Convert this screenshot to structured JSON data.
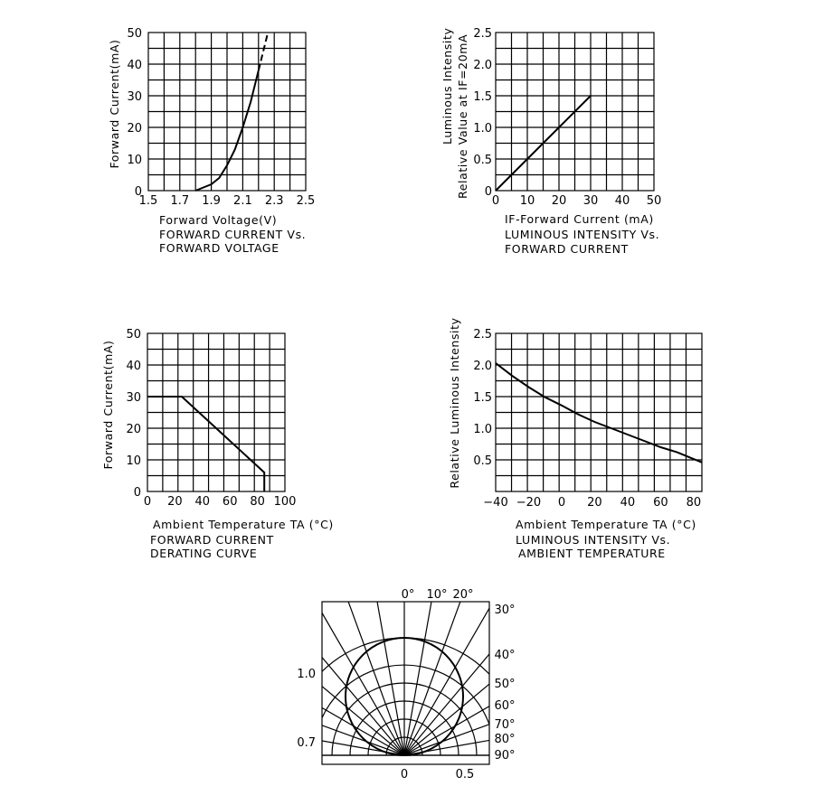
{
  "chart_data": [
    {
      "type": "line",
      "xlabel": "Forward Voltage(V)",
      "ylabel": "Forward Current(mA)",
      "caption": [
        "FORWARD CURRENT Vs.",
        "FORWARD VOLTAGE"
      ],
      "xlim": [
        1.5,
        2.5
      ],
      "ylim": [
        0,
        50
      ],
      "x_ticks": [
        1.5,
        1.7,
        1.9,
        2.1,
        2.3,
        2.5
      ],
      "x_tick_labels": [
        "1.5",
        "1.7",
        "1.9",
        "2.1",
        "2.3",
        "2.5"
      ],
      "y_ticks": [
        0,
        10,
        20,
        30,
        40,
        50
      ],
      "y_tick_labels": [
        "0",
        "10",
        "20",
        "30",
        "40",
        "50"
      ],
      "series": [
        {
          "style": "solid",
          "x": [
            1.8,
            1.85,
            1.9,
            1.95,
            2.0,
            2.05,
            2.1,
            2.15,
            2.2
          ],
          "y": [
            0,
            1,
            2,
            4,
            8,
            13,
            20,
            28,
            38
          ]
        },
        {
          "style": "dashed",
          "x": [
            2.2,
            2.23,
            2.26
          ],
          "y": [
            38,
            44,
            50
          ]
        }
      ],
      "grid": true
    },
    {
      "type": "line",
      "xlabel": "IF-Forward Current (mA)",
      "ylabel": "Relative Value at IF=20mA",
      "ylabel2": "Luminous Intensity",
      "caption": [
        "LUMINOUS INTENSITY Vs.",
        "FORWARD CURRENT"
      ],
      "xlim": [
        0,
        50
      ],
      "ylim": [
        0,
        2.5
      ],
      "x_ticks": [
        0,
        10,
        20,
        30,
        40,
        50
      ],
      "x_tick_labels": [
        "0",
        "10",
        "20",
        "30",
        "40",
        "50"
      ],
      "y_ticks": [
        0,
        0.5,
        1.0,
        1.5,
        2.0,
        2.5
      ],
      "y_tick_labels": [
        "0",
        "0.5",
        "1.0",
        "1.5",
        "2.0",
        "2.5"
      ],
      "series": [
        {
          "style": "solid",
          "x": [
            0,
            30
          ],
          "y": [
            0,
            1.5
          ]
        }
      ],
      "grid": true
    },
    {
      "type": "line",
      "xlabel": "Ambient Temperature TA (°C)",
      "ylabel": "Forward Current(mA)",
      "caption": [
        "FORWARD CURRENT",
        "DERATING CURVE"
      ],
      "xlim": [
        0,
        100
      ],
      "ylim": [
        0,
        50
      ],
      "x_ticks": [
        0,
        20,
        40,
        60,
        80,
        100
      ],
      "x_tick_labels": [
        "0",
        "20",
        "40",
        "60",
        "80",
        "100"
      ],
      "y_ticks": [
        0,
        10,
        20,
        30,
        40,
        50
      ],
      "y_tick_labels": [
        "0",
        "10",
        "20",
        "30",
        "40",
        "50"
      ],
      "series": [
        {
          "style": "solid",
          "x": [
            0,
            25,
            85,
            85
          ],
          "y": [
            30,
            30,
            6,
            0
          ]
        }
      ],
      "grid": true
    },
    {
      "type": "line",
      "xlabel": "Ambient Temperature TA (°C)",
      "ylabel": "Relative Luminous Intensity",
      "caption": [
        "LUMINOUS INTENSITY Vs.",
        "AMBIENT TEMPERATURE"
      ],
      "xlim": [
        -40,
        85
      ],
      "ylim": [
        0,
        2.5
      ],
      "x_ticks": [
        -40,
        -20,
        0,
        20,
        40,
        60,
        80
      ],
      "x_tick_labels": [
        "−40",
        "−20",
        "0",
        "20",
        "40",
        "60",
        "80"
      ],
      "y_ticks": [
        0.5,
        1.0,
        1.5,
        2.0,
        2.5
      ],
      "y_tick_labels": [
        "0.5",
        "1.0",
        "1.5",
        "2.0",
        "2.5"
      ],
      "series": [
        {
          "style": "solid",
          "x": [
            -40,
            -30,
            -20,
            -10,
            0,
            10,
            20,
            30,
            40,
            50,
            60,
            70,
            85
          ],
          "y": [
            2.03,
            1.83,
            1.65,
            1.49,
            1.36,
            1.22,
            1.1,
            1.0,
            0.9,
            0.8,
            0.7,
            0.62,
            0.46
          ]
        }
      ],
      "grid": true
    },
    {
      "type": "polar",
      "description": "radiation diagram",
      "angle_labels": [
        "0°",
        "10°",
        "20°",
        "30°",
        "40°",
        "50°",
        "60°",
        "70°",
        "80°",
        "90°"
      ],
      "left_labels": [
        "1.0",
        "0.7"
      ],
      "bottom_labels": [
        "0",
        "0.5"
      ],
      "pattern": "circle"
    }
  ]
}
